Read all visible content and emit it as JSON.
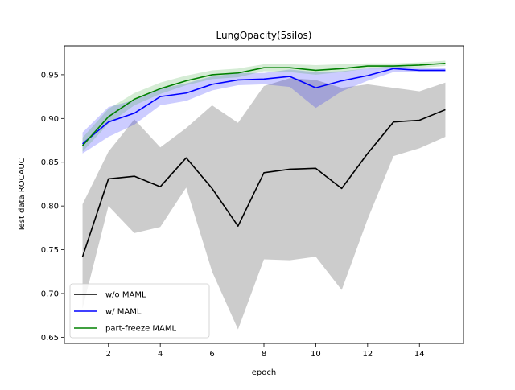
{
  "chart_data": {
    "type": "line",
    "title": "LungOpacity(5silos)",
    "xlabel": "epoch",
    "ylabel": "Test data ROCAUC",
    "xlim": [
      0.3,
      15.7
    ],
    "ylim": [
      0.643,
      0.983
    ],
    "xticks": [
      2,
      4,
      6,
      8,
      10,
      12,
      14
    ],
    "yticks": [
      0.65,
      0.7,
      0.75,
      0.8,
      0.85,
      0.9,
      0.95
    ],
    "grid": false,
    "legend_position": "bottom-left",
    "x": [
      1,
      2,
      3,
      4,
      5,
      6,
      7,
      8,
      9,
      10,
      11,
      12,
      13,
      14,
      15
    ],
    "series": [
      {
        "name": "w/o MAML",
        "color": "#000000",
        "band_color": "#7f7f7f",
        "values": [
          0.742,
          0.831,
          0.834,
          0.822,
          0.855,
          0.82,
          0.777,
          0.838,
          0.842,
          0.843,
          0.82,
          0.86,
          0.896,
          0.898,
          0.91
        ],
        "lower": [
          0.683,
          0.8,
          0.769,
          0.776,
          0.821,
          0.725,
          0.659,
          0.739,
          0.738,
          0.742,
          0.704,
          0.785,
          0.857,
          0.866,
          0.879
        ],
        "upper": [
          0.802,
          0.862,
          0.899,
          0.867,
          0.889,
          0.915,
          0.895,
          0.937,
          0.946,
          0.944,
          0.935,
          0.939,
          0.935,
          0.931,
          0.941
        ]
      },
      {
        "name": "w/ MAML",
        "color": "#0000ff",
        "band_color": "#0000ff",
        "values": [
          0.871,
          0.896,
          0.906,
          0.925,
          0.929,
          0.939,
          0.944,
          0.945,
          0.948,
          0.935,
          0.943,
          0.949,
          0.957,
          0.955,
          0.955
        ],
        "lower": [
          0.86,
          0.879,
          0.893,
          0.915,
          0.92,
          0.932,
          0.938,
          0.939,
          0.936,
          0.912,
          0.931,
          0.943,
          0.953,
          0.953,
          0.953
        ],
        "upper": [
          0.884,
          0.913,
          0.921,
          0.934,
          0.94,
          0.948,
          0.952,
          0.952,
          0.956,
          0.953,
          0.954,
          0.957,
          0.96,
          0.958,
          0.958
        ]
      },
      {
        "name": "part-freeze MAML",
        "color": "#008000",
        "band_color": "#2ca02c",
        "values": [
          0.869,
          0.902,
          0.922,
          0.934,
          0.943,
          0.95,
          0.952,
          0.958,
          0.958,
          0.955,
          0.957,
          0.96,
          0.96,
          0.961,
          0.963
        ],
        "lower": [
          0.862,
          0.894,
          0.915,
          0.928,
          0.938,
          0.945,
          0.947,
          0.954,
          0.953,
          0.95,
          0.953,
          0.957,
          0.957,
          0.958,
          0.96
        ],
        "upper": [
          0.878,
          0.911,
          0.929,
          0.941,
          0.949,
          0.955,
          0.957,
          0.962,
          0.962,
          0.961,
          0.962,
          0.963,
          0.963,
          0.964,
          0.966
        ]
      }
    ]
  }
}
